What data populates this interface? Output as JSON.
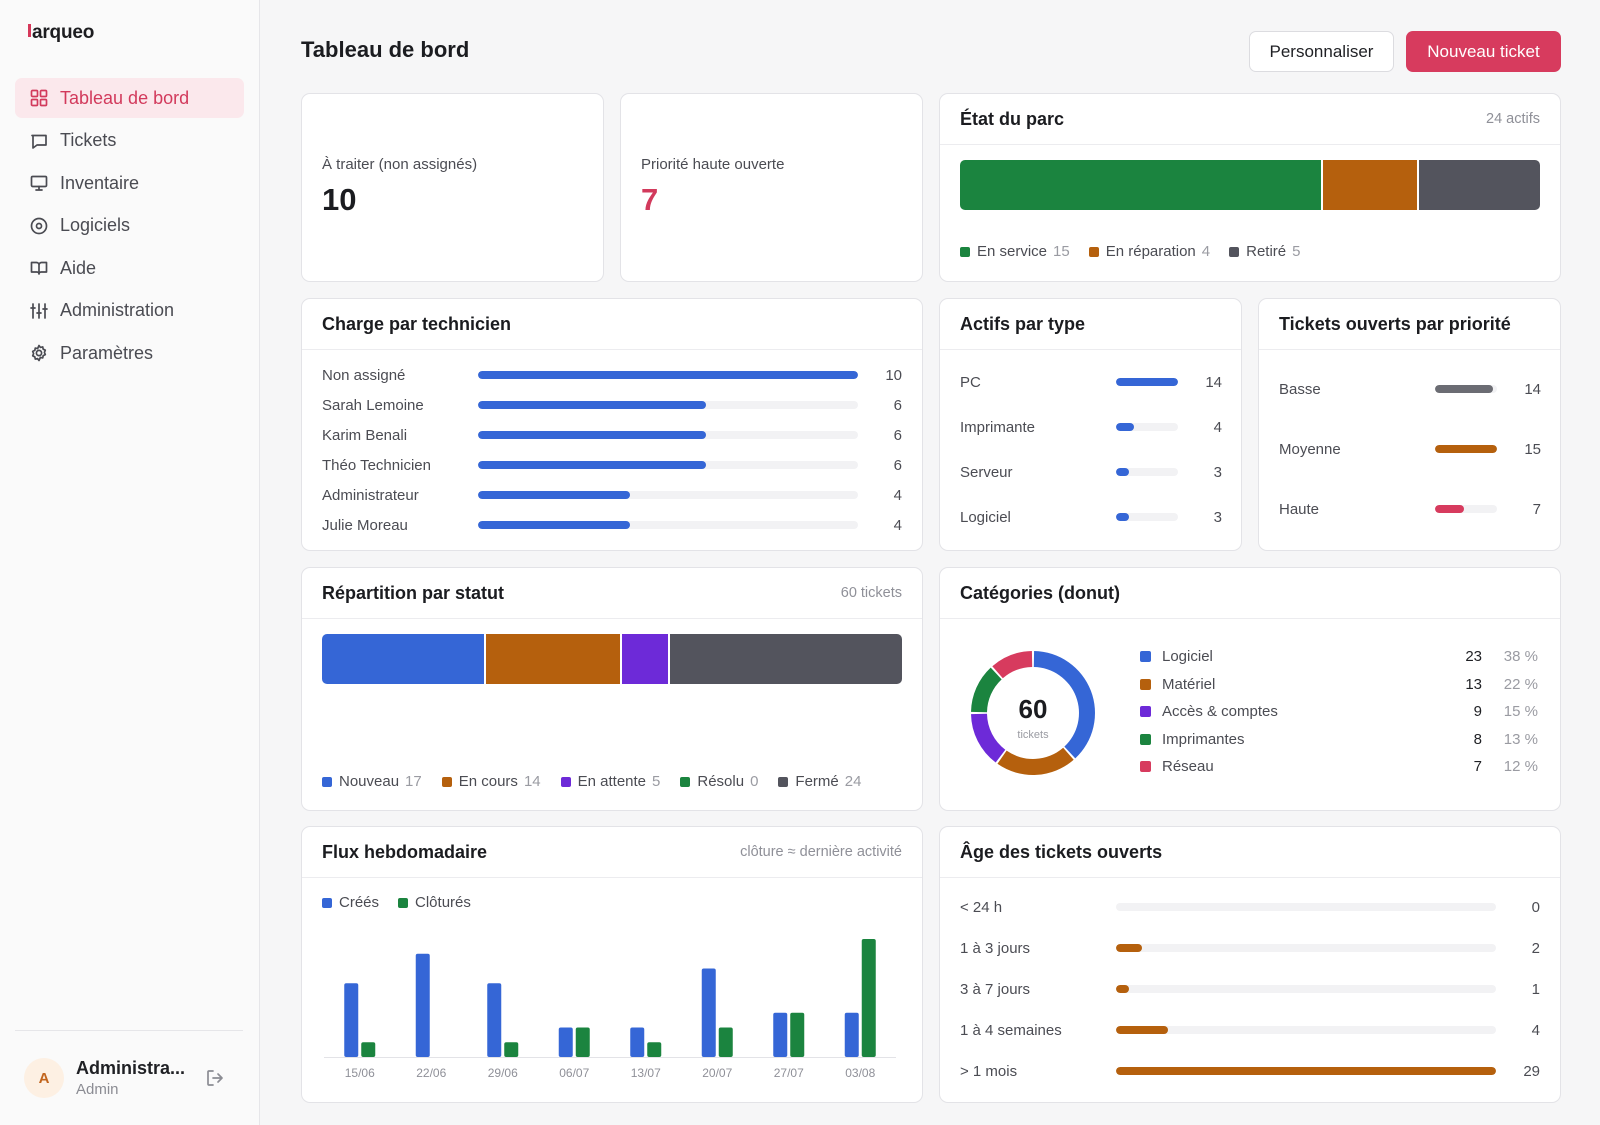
{
  "app": {
    "logo": "arqueo",
    "logo_initial_color": "#d6385a"
  },
  "sidebar": {
    "items": [
      {
        "label": "Tableau de bord",
        "icon": "grid-icon",
        "active": true
      },
      {
        "label": "Tickets",
        "icon": "chat-bubble-icon"
      },
      {
        "label": "Inventaire",
        "icon": "monitor-icon"
      },
      {
        "label": "Logiciels",
        "icon": "disc-icon"
      },
      {
        "label": "Aide",
        "icon": "book-icon"
      },
      {
        "label": "Administration",
        "icon": "sliders-icon"
      },
      {
        "label": "Paramètres",
        "icon": "gear-icon"
      }
    ],
    "user": {
      "initial": "A",
      "name": "Administra...",
      "role": "Admin"
    }
  },
  "header": {
    "title": "Tableau de bord",
    "customize_label": "Personnaliser",
    "new_ticket_label": "Nouveau ticket"
  },
  "kpis": {
    "unassigned": {
      "label": "À traiter (non assignés)",
      "value": "10"
    },
    "high_priority": {
      "label": "Priorité haute ouverte",
      "value": "7"
    }
  },
  "fleet": {
    "title": "État du parc",
    "meta": "24 actifs",
    "segments": [
      {
        "label": "En service",
        "count": 15,
        "color": "#1b843f"
      },
      {
        "label": "En réparation",
        "count": 4,
        "color": "#b5600d"
      },
      {
        "label": "Retiré",
        "count": 5,
        "color": "#53545d"
      }
    ]
  },
  "technicians": {
    "title": "Charge par technicien",
    "max": 10,
    "color": "#3566d6",
    "rows": [
      {
        "name": "Non assigné",
        "value": 10
      },
      {
        "name": "Sarah Lemoine",
        "value": 6
      },
      {
        "name": "Karim Benali",
        "value": 6
      },
      {
        "name": "Théo Technicien",
        "value": 6
      },
      {
        "name": "Administrateur",
        "value": 4
      },
      {
        "name": "Julie Moreau",
        "value": 4
      }
    ]
  },
  "asset_types": {
    "title": "Actifs par type",
    "max": 14,
    "color": "#3566d6",
    "rows": [
      {
        "name": "PC",
        "value": 14
      },
      {
        "name": "Imprimante",
        "value": 4
      },
      {
        "name": "Serveur",
        "value": 3
      },
      {
        "name": "Logiciel",
        "value": 3
      }
    ]
  },
  "priorities": {
    "title": "Tickets ouverts par priorité",
    "max": 15,
    "rows": [
      {
        "name": "Basse",
        "value": 14,
        "color": "#6b6c73"
      },
      {
        "name": "Moyenne",
        "value": 15,
        "color": "#b5600d"
      },
      {
        "name": "Haute",
        "value": 7,
        "color": "#d73b5e"
      }
    ]
  },
  "status": {
    "title": "Répartition par statut",
    "meta": "60 tickets",
    "segments": [
      {
        "label": "Nouveau",
        "count": 17,
        "color": "#3566d6"
      },
      {
        "label": "En cours",
        "count": 14,
        "color": "#b5600d"
      },
      {
        "label": "En attente",
        "count": 5,
        "color": "#6d2ad8"
      },
      {
        "label": "Résolu",
        "count": 0,
        "color": "#1b843f"
      },
      {
        "label": "Fermé",
        "count": 24,
        "color": "#53545d"
      }
    ]
  },
  "categories": {
    "title": "Catégories (donut)",
    "total": "60",
    "total_label": "tickets",
    "rows": [
      {
        "name": "Logiciel",
        "count": 23,
        "pct": "38 %",
        "color": "#3566d6"
      },
      {
        "name": "Matériel",
        "count": 13,
        "pct": "22 %",
        "color": "#b5600d"
      },
      {
        "name": "Accès & comptes",
        "count": 9,
        "pct": "15 %",
        "color": "#6d2ad8"
      },
      {
        "name": "Imprimantes",
        "count": 8,
        "pct": "13 %",
        "color": "#1b843f"
      },
      {
        "name": "Réseau",
        "count": 7,
        "pct": "12 %",
        "color": "#d73b5e"
      }
    ]
  },
  "weekly": {
    "title": "Flux hebdomadaire",
    "meta": "clôture ≈ dernière activité",
    "legend_created": "Créés",
    "legend_closed": "Clôturés",
    "color_created": "#3566d6",
    "color_closed": "#1b843f"
  },
  "chart_data": {
    "type": "bar",
    "categories": [
      "15/06",
      "22/06",
      "29/06",
      "06/07",
      "13/07",
      "20/07",
      "27/07",
      "03/08"
    ],
    "series": [
      {
        "name": "Créés",
        "values": [
          5,
          7,
          5,
          2,
          2,
          6,
          3,
          3
        ]
      },
      {
        "name": "Clôturés",
        "values": [
          1,
          0,
          1,
          2,
          1,
          2,
          3,
          8
        ]
      }
    ],
    "ylim": [
      0,
      8
    ],
    "grid": false,
    "legend": "top-left"
  },
  "age": {
    "title": "Âge des tickets ouverts",
    "max": 29,
    "color": "#b5600d",
    "rows": [
      {
        "name": "< 24 h",
        "value": 0
      },
      {
        "name": "1 à 3 jours",
        "value": 2
      },
      {
        "name": "3 à 7 jours",
        "value": 1
      },
      {
        "name": "1 à 4 semaines",
        "value": 4
      },
      {
        "name": "> 1 mois",
        "value": 29
      }
    ]
  }
}
